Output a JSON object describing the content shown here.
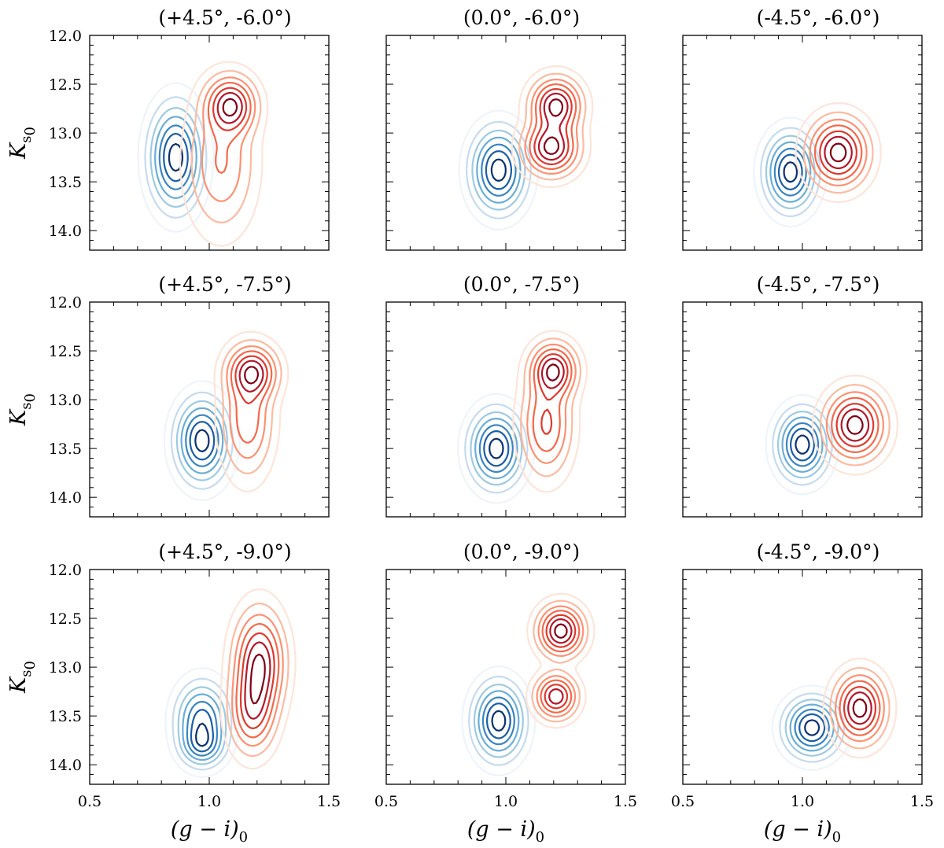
{
  "chart_data": {
    "type": "contour",
    "layout": {
      "rows": 3,
      "cols": 3
    },
    "xlim": [
      0.5,
      1.5
    ],
    "ylim": [
      14.2,
      12.0
    ],
    "y_inverted": true,
    "xticks": [
      "0.5",
      "1.0",
      "1.5"
    ],
    "yticks": [
      "12.0",
      "12.5",
      "13.0",
      "13.5",
      "14.0"
    ],
    "xlabel": {
      "main": "(g − i)",
      "sub": "0"
    },
    "ylabel": {
      "main": "K",
      "sub": "s",
      "subsub": "0"
    },
    "colors": {
      "blue": [
        "#eef4fb",
        "#c6dbef",
        "#9ecae1",
        "#6aaed6",
        "#3a86c2",
        "#1a5fa6",
        "#0a3270"
      ],
      "red": [
        "#fde5d9",
        "#fcbba1",
        "#fc9272",
        "#f4694b",
        "#dd3a2d",
        "#b2182b",
        "#7f0014"
      ]
    },
    "panels": [
      {
        "title": "(+4.5°, -6.0°)",
        "blue": [
          {
            "x": 0.86,
            "y": 13.25,
            "sx": 0.062,
            "sy": 0.3,
            "w": 1.0
          }
        ],
        "red": [
          {
            "x": 1.09,
            "y": 12.72,
            "sx": 0.06,
            "sy": 0.17,
            "w": 1.0
          },
          {
            "x": 1.05,
            "y": 13.3,
            "sx": 0.08,
            "sy": 0.4,
            "w": 0.45
          }
        ]
      },
      {
        "title": "(0.0°, -6.0°)",
        "blue": [
          {
            "x": 0.97,
            "y": 13.38,
            "sx": 0.065,
            "sy": 0.24,
            "w": 1.0
          }
        ],
        "red": [
          {
            "x": 1.21,
            "y": 12.72,
            "sx": 0.06,
            "sy": 0.16,
            "w": 1.0
          },
          {
            "x": 1.19,
            "y": 13.15,
            "sx": 0.065,
            "sy": 0.16,
            "w": 1.0
          }
        ]
      },
      {
        "title": "(-4.5°, -6.0°)",
        "blue": [
          {
            "x": 0.95,
            "y": 13.4,
            "sx": 0.06,
            "sy": 0.22,
            "w": 1.0
          }
        ],
        "red": [
          {
            "x": 1.15,
            "y": 13.2,
            "sx": 0.07,
            "sy": 0.2,
            "w": 1.0
          }
        ]
      },
      {
        "title": "(+4.5°, -7.5°)",
        "blue": [
          {
            "x": 0.97,
            "y": 13.42,
            "sx": 0.062,
            "sy": 0.24,
            "w": 1.0
          }
        ],
        "red": [
          {
            "x": 1.18,
            "y": 12.72,
            "sx": 0.06,
            "sy": 0.16,
            "w": 1.0
          },
          {
            "x": 1.16,
            "y": 13.2,
            "sx": 0.06,
            "sy": 0.33,
            "w": 0.6
          }
        ]
      },
      {
        "title": "(0.0°, -7.5°)",
        "blue": [
          {
            "x": 0.96,
            "y": 13.5,
            "sx": 0.063,
            "sy": 0.22,
            "w": 1.0
          }
        ],
        "red": [
          {
            "x": 1.2,
            "y": 12.7,
            "sx": 0.055,
            "sy": 0.16,
            "w": 1.0
          },
          {
            "x": 1.17,
            "y": 13.25,
            "sx": 0.06,
            "sy": 0.3,
            "w": 0.65
          }
        ]
      },
      {
        "title": "(-4.5°, -7.5°)",
        "blue": [
          {
            "x": 1.0,
            "y": 13.46,
            "sx": 0.06,
            "sy": 0.2,
            "w": 1.0
          }
        ],
        "red": [
          {
            "x": 1.22,
            "y": 13.26,
            "sx": 0.07,
            "sy": 0.2,
            "w": 1.0
          }
        ]
      },
      {
        "title": "(+4.5°, -9.0°)",
        "blue": [
          {
            "x": 0.97,
            "y": 13.55,
            "sx": 0.062,
            "sy": 0.22,
            "w": 1.0
          },
          {
            "x": 0.97,
            "y": 13.8,
            "sx": 0.05,
            "sy": 0.12,
            "w": 0.6
          }
        ],
        "red": [
          {
            "x": 1.21,
            "y": 12.95,
            "sx": 0.06,
            "sy": 0.3,
            "w": 1.0
          },
          {
            "x": 1.18,
            "y": 13.45,
            "sx": 0.055,
            "sy": 0.25,
            "w": 0.7
          }
        ]
      },
      {
        "title": "(0.0°, -9.0°)",
        "blue": [
          {
            "x": 0.97,
            "y": 13.55,
            "sx": 0.06,
            "sy": 0.22,
            "w": 1.0
          }
        ],
        "red": [
          {
            "x": 1.23,
            "y": 12.63,
            "sx": 0.055,
            "sy": 0.15,
            "w": 1.0
          },
          {
            "x": 1.21,
            "y": 13.3,
            "sx": 0.05,
            "sy": 0.13,
            "w": 0.85
          }
        ]
      },
      {
        "title": "(-4.5°, -9.0°)",
        "blue": [
          {
            "x": 1.04,
            "y": 13.62,
            "sx": 0.065,
            "sy": 0.17,
            "w": 1.0
          }
        ],
        "red": [
          {
            "x": 1.24,
            "y": 13.42,
            "sx": 0.06,
            "sy": 0.2,
            "w": 1.0
          }
        ]
      }
    ]
  }
}
